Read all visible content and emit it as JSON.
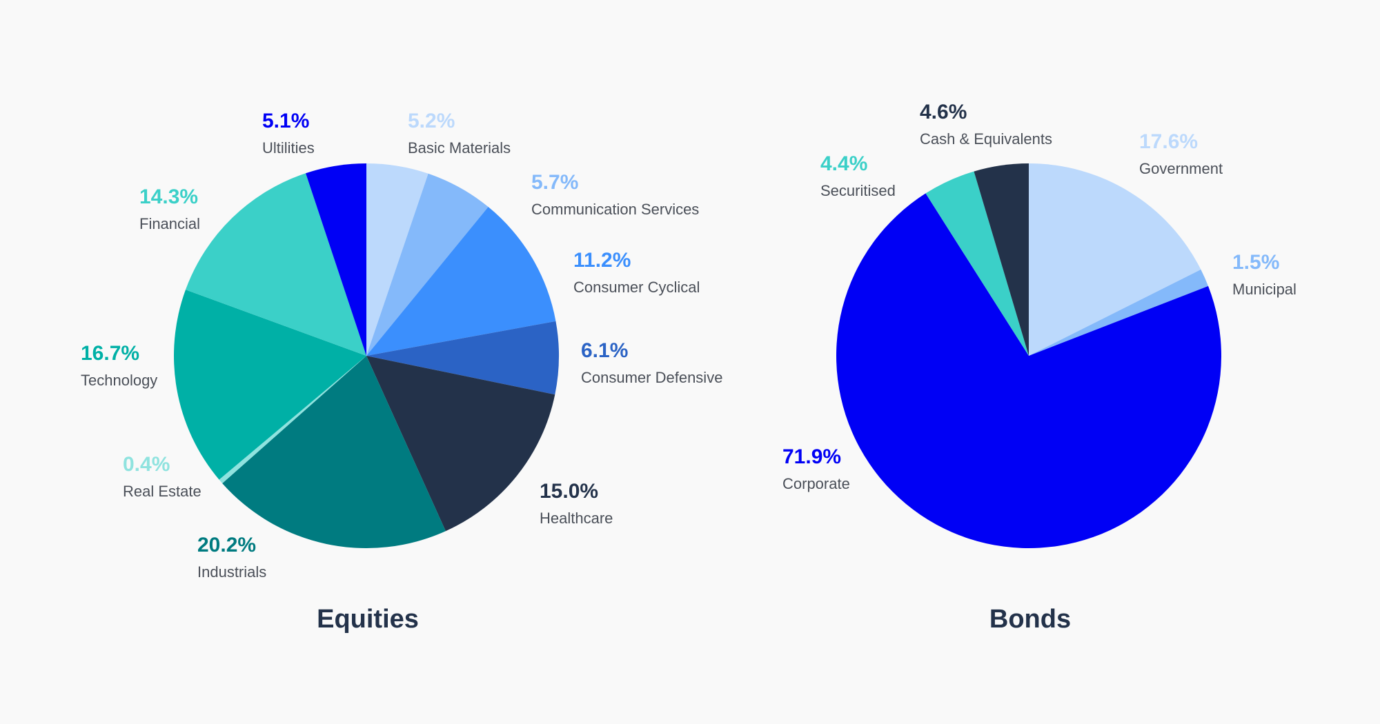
{
  "chart_data": [
    {
      "type": "pie",
      "title": "Equities",
      "slices": [
        {
          "label": "Basic Materials",
          "value": 5.2,
          "value_label": "5.2%",
          "color": "#bcd9fc"
        },
        {
          "label": "Communication Services",
          "value": 5.7,
          "value_label": "5.7%",
          "color": "#84b9fa"
        },
        {
          "label": "Consumer Cyclical",
          "value": 11.2,
          "value_label": "11.2%",
          "color": "#3b8ffd"
        },
        {
          "label": "Consumer Defensive",
          "value": 6.1,
          "value_label": "6.1%",
          "color": "#2b63c5"
        },
        {
          "label": "Healthcare",
          "value": 15.0,
          "value_label": "15.0%",
          "color": "#23324a"
        },
        {
          "label": "Industrials",
          "value": 20.2,
          "value_label": "20.2%",
          "color": "#007b80"
        },
        {
          "label": "Real Estate",
          "value": 0.4,
          "value_label": "0.4%",
          "color": "#8fe3df"
        },
        {
          "label": "Technology",
          "value": 16.7,
          "value_label": "16.7%",
          "color": "#00b0a6"
        },
        {
          "label": "Financial",
          "value": 14.3,
          "value_label": "14.3%",
          "color": "#3bd0c8"
        },
        {
          "label": "Ultilities",
          "value": 5.1,
          "value_label": "5.1%",
          "color": "#0000f5"
        }
      ]
    },
    {
      "type": "pie",
      "title": "Bonds",
      "slices": [
        {
          "label": "Government",
          "value": 17.6,
          "value_label": "17.6%",
          "color": "#bcd9fc"
        },
        {
          "label": "Municipal",
          "value": 1.5,
          "value_label": "1.5%",
          "color": "#84b9fa"
        },
        {
          "label": "Corporate",
          "value": 71.9,
          "value_label": "71.9%",
          "color": "#0000f5"
        },
        {
          "label": "Securitised",
          "value": 4.4,
          "value_label": "4.4%",
          "color": "#3bd0c8"
        },
        {
          "label": "Cash & Equivalents",
          "value": 4.6,
          "value_label": "4.6%",
          "color": "#23324a"
        }
      ]
    }
  ]
}
